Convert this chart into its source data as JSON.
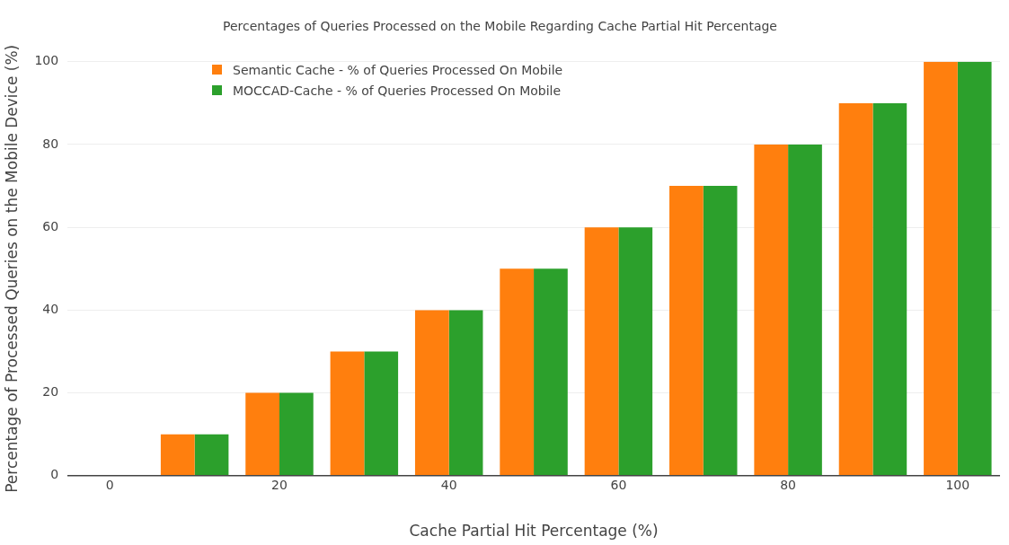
{
  "chart_data": {
    "type": "bar",
    "title": "Percentages of Queries Processed on the Mobile Regarding Cache Partial Hit Percentage",
    "xlabel": "Cache Partial Hit Percentage (%)",
    "ylabel": "Percentage of Processed Queries on the Mobile Device (%)",
    "x": [
      0,
      10,
      20,
      30,
      40,
      50,
      60,
      70,
      80,
      90,
      100
    ],
    "series": [
      {
        "name": "Semantic Cache - % of Queries Processed On Mobile",
        "color": "#ff7f0e",
        "values": [
          0,
          10,
          20,
          30,
          40,
          50,
          60,
          70,
          80,
          90,
          100
        ]
      },
      {
        "name": "MOCCAD-Cache - % of Queries Processed On Mobile",
        "color": "#2ca02c",
        "values": [
          0,
          10,
          20,
          30,
          40,
          50,
          60,
          70,
          80,
          90,
          100
        ]
      }
    ],
    "xlim": [
      -5,
      105
    ],
    "xticks": [
      0,
      20,
      40,
      60,
      80,
      100
    ],
    "ylim": [
      0,
      100
    ],
    "yticks": [
      0,
      20,
      40,
      60,
      80,
      100
    ],
    "grid": "y",
    "legend": "top left"
  }
}
